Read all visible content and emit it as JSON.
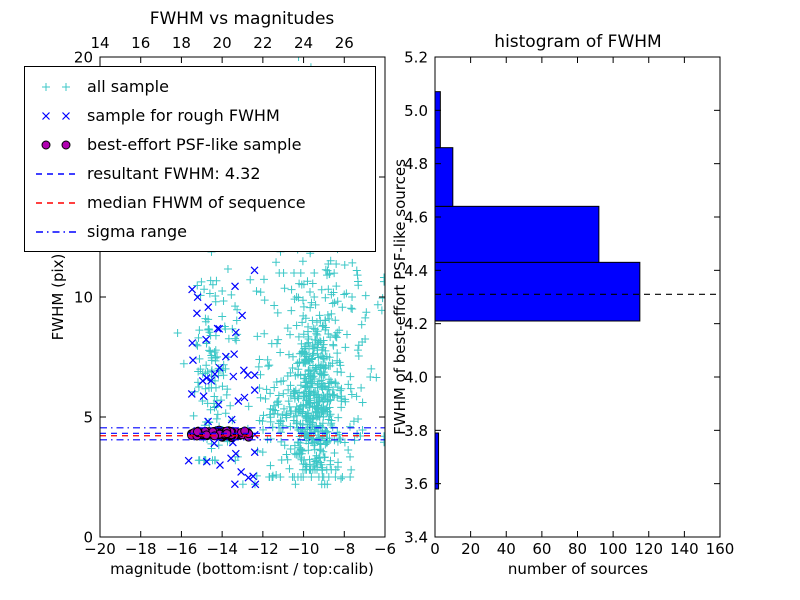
{
  "window": {
    "background": "#ffffff"
  },
  "chart_data": [
    {
      "type": "scatter",
      "title": "FWHM vs magnitudes",
      "xlabel": "magnitude (bottom:isnt / top:calib)",
      "ylabel": "FWHM (pix)",
      "xlim": [
        -20,
        -6
      ],
      "ylim": [
        0,
        20
      ],
      "x_ticks_bottom": [
        -20,
        -18,
        -16,
        -14,
        -12,
        -10,
        -8,
        -6
      ],
      "x_ticks_top": [
        14,
        16,
        18,
        20,
        22,
        24,
        26
      ],
      "top_axis_offset": 34,
      "y_ticks": [
        0,
        5,
        10,
        15,
        20
      ],
      "series": [
        {
          "name": "all sample",
          "marker": "plus",
          "color": "#3cc7c7",
          "seed": 11,
          "clusters": [
            {
              "count": 260,
              "x_mean": -9.4,
              "x_sd": 0.45,
              "y_mean": 6.0,
              "y_sd": 2.0,
              "y_min": 2.8,
              "y_max": 13.0
            },
            {
              "count": 240,
              "x_mean": -9.9,
              "x_sd": 1.1,
              "y_mean": 5.2,
              "y_sd": 1.6,
              "y_min": 2.5,
              "y_max": 10.0
            },
            {
              "count": 110,
              "x_mean": -14.5,
              "x_sd": 0.5,
              "y_mean": 7.0,
              "y_sd": 2.6,
              "y_min": 3.2,
              "y_max": 13.5
            },
            {
              "count": 70,
              "x_mean": -9.7,
              "x_sd": 1.2,
              "y_mean": 14.5,
              "y_sd": 2.6,
              "y_min": 11.0,
              "y_max": 20.0
            },
            {
              "count": 140,
              "x_mean": -10.3,
              "x_sd": 2.2,
              "y_mean": 8.0,
              "y_sd": 3.2,
              "y_min": 2.2,
              "y_max": 19.0
            },
            {
              "count": 40,
              "x_mean": -7.5,
              "x_sd": 0.8,
              "y_mean": 9.0,
              "y_sd": 2.5,
              "y_min": 3.0,
              "y_max": 14.0
            }
          ]
        },
        {
          "name": "sample for rough FWHM",
          "marker": "x",
          "color": "#0000ff",
          "seed": 7,
          "clusters": [
            {
              "count": 42,
              "x_mean": -14.1,
              "x_sd": 0.9,
              "x_min": -15.8,
              "x_max": -12.4,
              "y_mean": 6.3,
              "y_sd": 2.6,
              "y_min": 2.2,
              "y_max": 13.0
            },
            {
              "count": 6,
              "x_mean": -12.9,
              "x_sd": 0.4,
              "x_min": -13.6,
              "x_max": -12.3,
              "y_mean": 3.0,
              "y_sd": 0.8,
              "y_min": 2.0,
              "y_max": 4.2
            }
          ]
        },
        {
          "name": "best-effort PSF-like sample",
          "marker": "circle",
          "color": "#b000b0",
          "edge_color": "#000000",
          "seed": 3,
          "clusters": [
            {
              "count": 160,
              "x_mean": -14.1,
              "x_sd": 0.7,
              "x_min": -15.5,
              "x_max": -12.7,
              "y_mean": 4.32,
              "y_sd": 0.06,
              "y_min": 4.15,
              "y_max": 4.5
            }
          ]
        }
      ],
      "hlines": [
        {
          "name": "resultant-fwhm-line",
          "y": 4.32,
          "color": "#0000ff",
          "style": "dashed"
        },
        {
          "name": "median-fwhm-line",
          "y": 4.22,
          "color": "#ff0000",
          "style": "dashed"
        },
        {
          "name": "sigma-upper-line",
          "y": 4.55,
          "color": "#0000ff",
          "style": "dashdot"
        },
        {
          "name": "sigma-lower-line",
          "y": 4.05,
          "color": "#0000ff",
          "style": "dashdot"
        }
      ],
      "legend": [
        {
          "label": "all sample",
          "marker": "plus",
          "color": "#3cc7c7"
        },
        {
          "label": "sample for rough FWHM",
          "marker": "x",
          "color": "#0000ff"
        },
        {
          "label": "best-effort PSF-like sample",
          "marker": "circle",
          "color": "#b000b0"
        },
        {
          "label": "resultant FWHM: 4.32",
          "marker": "line-dashed",
          "color": "#0000ff"
        },
        {
          "label": "median FHWM of sequence",
          "marker": "line-dashed",
          "color": "#ff0000"
        },
        {
          "label": "sigma range",
          "marker": "line-dashdot",
          "color": "#0000ff"
        }
      ]
    },
    {
      "type": "bar",
      "orientation": "horizontal",
      "title": "histogram of FWHM",
      "xlabel": "number of sources",
      "ylabel": "FWHM of best-effort PSF-like sources",
      "xlim": [
        0,
        160
      ],
      "ylim": [
        3.4,
        5.2
      ],
      "x_ticks": [
        0,
        20,
        40,
        60,
        80,
        100,
        120,
        140,
        160
      ],
      "y_ticks": [
        3.4,
        3.6,
        3.8,
        4.0,
        4.2,
        4.4,
        4.6,
        4.8,
        5.0,
        5.2
      ],
      "bin_edges": [
        3.58,
        3.79,
        4.0,
        4.21,
        4.43,
        4.64,
        4.86,
        5.07
      ],
      "counts": [
        2,
        0,
        0,
        115,
        92,
        10,
        3
      ],
      "bar_color": "#0000ff",
      "bar_edge_color": "#000000",
      "dashed_line": {
        "y": 4.31,
        "color": "#000000",
        "style": "dashed"
      }
    }
  ]
}
